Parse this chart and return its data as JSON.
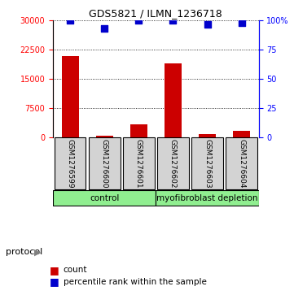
{
  "title": "GDS5821 / ILMN_1236718",
  "samples": [
    "GSM1276599",
    "GSM1276600",
    "GSM1276601",
    "GSM1276602",
    "GSM1276603",
    "GSM1276604"
  ],
  "counts": [
    21000,
    500,
    3500,
    19000,
    900,
    1800
  ],
  "percentiles": [
    100,
    93,
    100,
    100,
    97,
    98
  ],
  "left_ylim": [
    0,
    30000
  ],
  "right_ylim": [
    0,
    100
  ],
  "left_yticks": [
    0,
    7500,
    15000,
    22500,
    30000
  ],
  "right_yticks": [
    0,
    25,
    50,
    75,
    100
  ],
  "right_yticklabels": [
    "0",
    "25",
    "50",
    "75",
    "100%"
  ],
  "bar_color": "#cc0000",
  "dot_color": "#0000cc",
  "protocol_label": "protocol",
  "legend_count": "count",
  "legend_percentile": "percentile rank within the sample",
  "sample_box_color": "#d3d3d3",
  "control_color": "#90EE90",
  "myo_color": "#90EE90",
  "figsize": [
    3.61,
    3.63
  ],
  "dpi": 100
}
